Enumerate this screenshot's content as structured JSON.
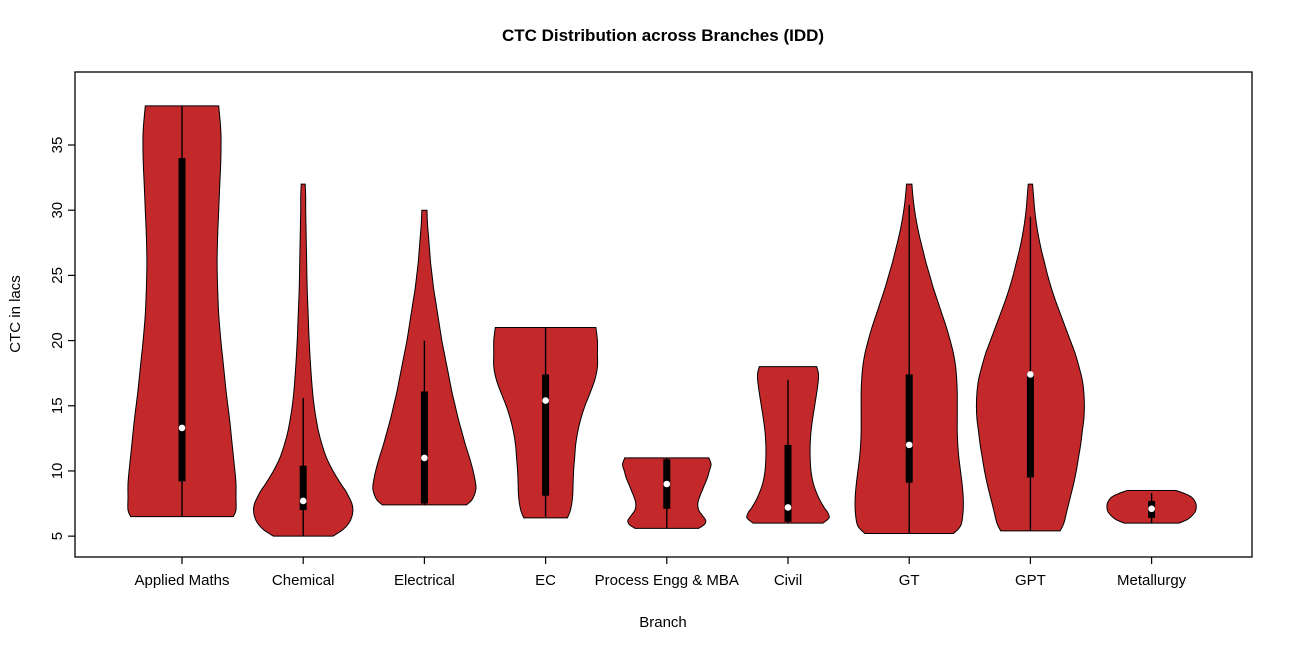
{
  "figure": {
    "background": "#FFFFFF",
    "border_color": "#000000"
  },
  "chart_data": {
    "type": "violin",
    "title": "CTC Distribution across Branches (IDD)",
    "xlabel": "Branch",
    "ylabel": "CTC in lacs",
    "ylim": [
      3.4,
      40.6
    ],
    "yticks": [
      5,
      10,
      15,
      20,
      25,
      30,
      35
    ],
    "grid": false,
    "legend": "none",
    "fill_color": "#C3292B",
    "outline_color": "#000000",
    "box_color": "#000000",
    "median_dot_color": "#FFFFFF",
    "categories": [
      "Applied Maths",
      "Chemical",
      "Electrical",
      "EC",
      "Process Engg & MBA",
      "Civil",
      "GT",
      "GPT",
      "Metallurgy"
    ],
    "series": [
      {
        "branch": "Applied Maths",
        "min": 6.5,
        "max": 38,
        "q1": 9.2,
        "q3": 34,
        "median": 13.3,
        "whisker_low": 6.5,
        "whisker_high": 38,
        "width_scale": 1.0,
        "profile": [
          [
            6.5,
            0.95
          ],
          [
            7,
            1.0
          ],
          [
            8,
            1.0
          ],
          [
            9,
            1.0
          ],
          [
            10,
            0.98
          ],
          [
            12,
            0.93
          ],
          [
            14,
            0.88
          ],
          [
            16,
            0.82
          ],
          [
            18,
            0.77
          ],
          [
            20,
            0.72
          ],
          [
            22,
            0.68
          ],
          [
            24,
            0.66
          ],
          [
            26,
            0.65
          ],
          [
            28,
            0.66
          ],
          [
            30,
            0.68
          ],
          [
            32,
            0.7
          ],
          [
            34,
            0.72
          ],
          [
            36,
            0.72
          ],
          [
            38,
            0.68
          ]
        ]
      },
      {
        "branch": "Chemical",
        "min": 5,
        "max": 32,
        "q1": 7,
        "q3": 10.4,
        "median": 7.7,
        "whisker_low": 5,
        "whisker_high": 15.6,
        "width_scale": 0.92,
        "profile": [
          [
            5,
            0.6
          ],
          [
            5.5,
            0.8
          ],
          [
            6,
            0.92
          ],
          [
            6.5,
            0.98
          ],
          [
            7,
            1.0
          ],
          [
            7.5,
            0.98
          ],
          [
            8,
            0.92
          ],
          [
            8.5,
            0.85
          ],
          [
            9,
            0.76
          ],
          [
            10,
            0.6
          ],
          [
            11,
            0.47
          ],
          [
            12,
            0.38
          ],
          [
            13,
            0.31
          ],
          [
            14,
            0.26
          ],
          [
            15,
            0.22
          ],
          [
            16,
            0.19
          ],
          [
            18,
            0.15
          ],
          [
            20,
            0.12
          ],
          [
            22,
            0.1
          ],
          [
            24,
            0.08
          ],
          [
            26,
            0.07
          ],
          [
            28,
            0.06
          ],
          [
            30,
            0.05
          ],
          [
            31,
            0.05
          ],
          [
            32,
            0.04
          ]
        ]
      },
      {
        "branch": "Electrical",
        "min": 7.4,
        "max": 30,
        "q1": 7.5,
        "q3": 16.1,
        "median": 11,
        "whisker_low": 7.4,
        "whisker_high": 20,
        "width_scale": 0.95,
        "profile": [
          [
            7.4,
            0.82
          ],
          [
            7.8,
            0.93
          ],
          [
            8.5,
            1.0
          ],
          [
            9,
            1.0
          ],
          [
            10,
            0.95
          ],
          [
            11,
            0.88
          ],
          [
            12,
            0.8
          ],
          [
            13,
            0.73
          ],
          [
            14,
            0.66
          ],
          [
            15,
            0.6
          ],
          [
            16,
            0.54
          ],
          [
            17,
            0.49
          ],
          [
            18,
            0.44
          ],
          [
            19,
            0.39
          ],
          [
            20,
            0.34
          ],
          [
            21,
            0.3
          ],
          [
            22,
            0.26
          ],
          [
            23,
            0.22
          ],
          [
            24,
            0.18
          ],
          [
            25,
            0.15
          ],
          [
            26,
            0.12
          ],
          [
            27,
            0.1
          ],
          [
            28,
            0.08
          ],
          [
            29,
            0.06
          ],
          [
            30,
            0.05
          ]
        ]
      },
      {
        "branch": "EC",
        "min": 6.4,
        "max": 21,
        "q1": 8.1,
        "q3": 17.4,
        "median": 15.4,
        "whisker_low": 6.5,
        "whisker_high": 21,
        "width_scale": 0.96,
        "profile": [
          [
            6.4,
            0.42
          ],
          [
            7,
            0.48
          ],
          [
            8,
            0.52
          ],
          [
            9,
            0.53
          ],
          [
            10,
            0.54
          ],
          [
            11,
            0.56
          ],
          [
            12,
            0.58
          ],
          [
            13,
            0.62
          ],
          [
            14,
            0.68
          ],
          [
            15,
            0.76
          ],
          [
            16,
            0.86
          ],
          [
            17,
            0.95
          ],
          [
            18,
            1.0
          ],
          [
            19,
            1.0
          ],
          [
            20,
            1.0
          ],
          [
            21,
            0.97
          ]
        ]
      },
      {
        "branch": "Process Engg & MBA",
        "min": 5.6,
        "max": 11,
        "q1": 7.1,
        "q3": 10.9,
        "median": 9,
        "whisker_low": 5.6,
        "whisker_high": 11,
        "width_scale": 0.82,
        "profile": [
          [
            5.6,
            0.72
          ],
          [
            5.9,
            0.85
          ],
          [
            6.2,
            0.88
          ],
          [
            6.6,
            0.8
          ],
          [
            7,
            0.72
          ],
          [
            7.5,
            0.7
          ],
          [
            8,
            0.74
          ],
          [
            8.5,
            0.8
          ],
          [
            9,
            0.86
          ],
          [
            9.5,
            0.92
          ],
          [
            10,
            0.96
          ],
          [
            10.5,
            1.0
          ],
          [
            11,
            0.95
          ]
        ]
      },
      {
        "branch": "Civil",
        "min": 6,
        "max": 18,
        "q1": 6.1,
        "q3": 12,
        "median": 7.2,
        "whisker_low": 6,
        "whisker_high": 17,
        "width_scale": 0.76,
        "profile": [
          [
            6,
            0.85
          ],
          [
            6.4,
            1.0
          ],
          [
            6.8,
            0.97
          ],
          [
            7.2,
            0.88
          ],
          [
            8,
            0.74
          ],
          [
            9,
            0.62
          ],
          [
            10,
            0.56
          ],
          [
            11,
            0.54
          ],
          [
            12,
            0.54
          ],
          [
            13,
            0.56
          ],
          [
            14,
            0.6
          ],
          [
            15,
            0.65
          ],
          [
            16,
            0.7
          ],
          [
            17,
            0.74
          ],
          [
            17.5,
            0.74
          ],
          [
            18,
            0.7
          ]
        ]
      },
      {
        "branch": "GT",
        "min": 5.2,
        "max": 32,
        "q1": 9.1,
        "q3": 17.4,
        "median": 12,
        "whisker_low": 5.2,
        "whisker_high": 30.4,
        "width_scale": 1.0,
        "profile": [
          [
            5.2,
            0.82
          ],
          [
            5.6,
            0.92
          ],
          [
            6,
            0.97
          ],
          [
            7,
            1.0
          ],
          [
            8,
            1.0
          ],
          [
            9,
            0.98
          ],
          [
            10,
            0.95
          ],
          [
            11,
            0.92
          ],
          [
            12,
            0.9
          ],
          [
            13,
            0.89
          ],
          [
            14,
            0.89
          ],
          [
            15,
            0.89
          ],
          [
            16,
            0.89
          ],
          [
            17,
            0.88
          ],
          [
            18,
            0.86
          ],
          [
            19,
            0.82
          ],
          [
            20,
            0.76
          ],
          [
            21,
            0.69
          ],
          [
            22,
            0.61
          ],
          [
            23,
            0.53
          ],
          [
            24,
            0.45
          ],
          [
            25,
            0.38
          ],
          [
            26,
            0.31
          ],
          [
            27,
            0.25
          ],
          [
            28,
            0.19
          ],
          [
            29,
            0.14
          ],
          [
            30,
            0.1
          ],
          [
            31,
            0.07
          ],
          [
            32,
            0.05
          ]
        ]
      },
      {
        "branch": "GPT",
        "min": 5.4,
        "max": 32,
        "q1": 9.5,
        "q3": 17.5,
        "median": 17.4,
        "whisker_low": 5.4,
        "whisker_high": 29.5,
        "width_scale": 1.0,
        "profile": [
          [
            5.4,
            0.55
          ],
          [
            6,
            0.62
          ],
          [
            7,
            0.68
          ],
          [
            8,
            0.74
          ],
          [
            9,
            0.8
          ],
          [
            10,
            0.85
          ],
          [
            11,
            0.89
          ],
          [
            12,
            0.93
          ],
          [
            13,
            0.96
          ],
          [
            14,
            0.99
          ],
          [
            15,
            1.0
          ],
          [
            16,
            0.99
          ],
          [
            17,
            0.96
          ],
          [
            18,
            0.9
          ],
          [
            19,
            0.83
          ],
          [
            20,
            0.74
          ],
          [
            21,
            0.65
          ],
          [
            22,
            0.56
          ],
          [
            23,
            0.47
          ],
          [
            24,
            0.39
          ],
          [
            25,
            0.32
          ],
          [
            26,
            0.26
          ],
          [
            27,
            0.2
          ],
          [
            28,
            0.15
          ],
          [
            29,
            0.11
          ],
          [
            30,
            0.08
          ],
          [
            31,
            0.06
          ],
          [
            32,
            0.04
          ]
        ]
      },
      {
        "branch": "Metallurgy",
        "min": 6,
        "max": 8.5,
        "q1": 6.4,
        "q3": 7.7,
        "median": 7.1,
        "whisker_low": 6,
        "whisker_high": 8.3,
        "width_scale": 0.82,
        "profile": [
          [
            6,
            0.62
          ],
          [
            6.3,
            0.82
          ],
          [
            6.7,
            0.95
          ],
          [
            7,
            1.0
          ],
          [
            7.5,
            1.0
          ],
          [
            8,
            0.9
          ],
          [
            8.3,
            0.72
          ],
          [
            8.5,
            0.55
          ]
        ]
      }
    ]
  }
}
